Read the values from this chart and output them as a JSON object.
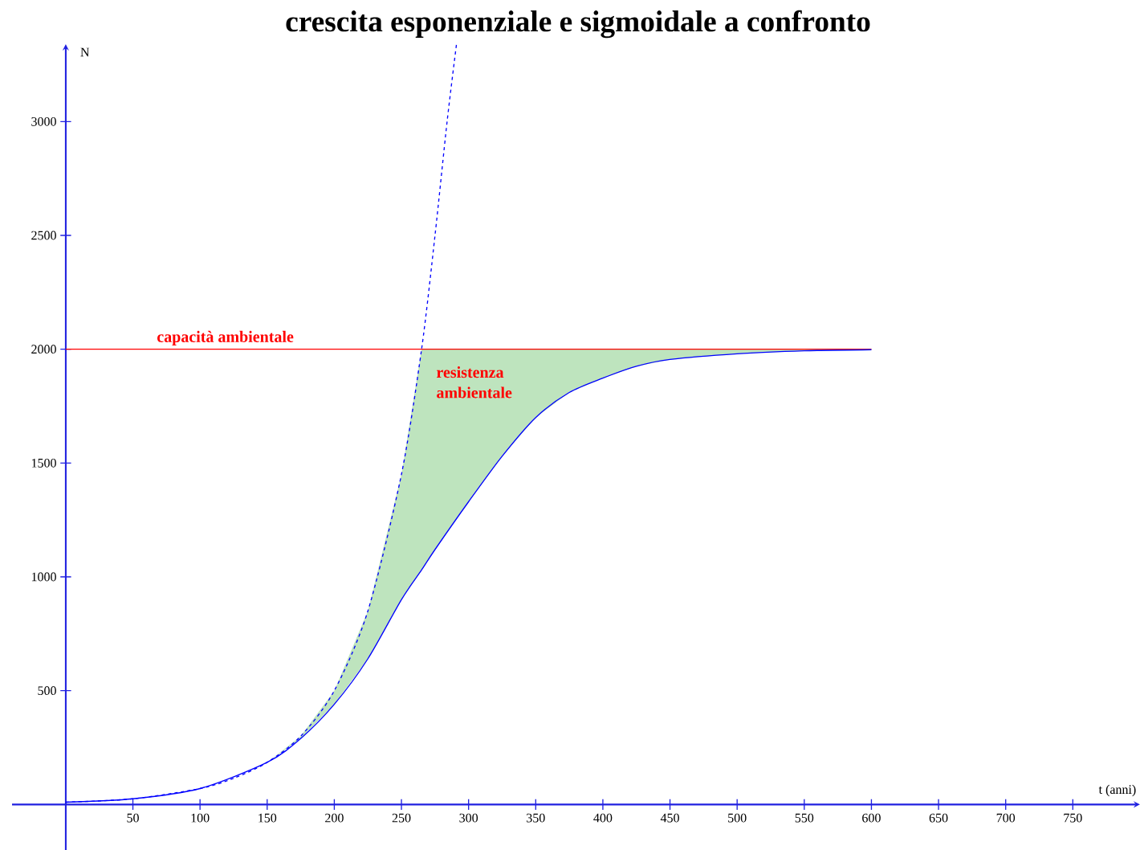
{
  "chart_data": {
    "type": "line",
    "title": "crescita esponenziale e sigmoidale a confronto",
    "xlabel": "t (anni)",
    "ylabel": "N",
    "xlim": [
      -40,
      800
    ],
    "ylim": [
      -200,
      3340
    ],
    "xticks": [
      50,
      100,
      150,
      200,
      250,
      300,
      350,
      400,
      450,
      500,
      550,
      600,
      650,
      700,
      750
    ],
    "yticks": [
      500,
      1000,
      1500,
      2000,
      2500,
      3000
    ],
    "series": [
      {
        "color": "#0000ff",
        "line_style": "dashed",
        "x": [
          0,
          50,
          100,
          125,
          150,
          175,
          200,
          225,
          250,
          265,
          275,
          284,
          291
        ],
        "values": [
          10,
          25,
          70,
          115,
          185,
          300,
          500,
          850,
          1450,
          2000,
          2500,
          3000,
          3340
        ]
      },
      {
        "color": "#0000ff",
        "line_style": "solid",
        "x": [
          0,
          50,
          100,
          150,
          175,
          200,
          225,
          250,
          265,
          275,
          300,
          325,
          350,
          375,
          400,
          425,
          450,
          500,
          550,
          600
        ],
        "values": [
          10,
          25,
          70,
          185,
          290,
          440,
          640,
          900,
          1030,
          1120,
          1330,
          1530,
          1700,
          1810,
          1873,
          1925,
          1955,
          1980,
          1993,
          1998
        ],
        "lower": [
          10,
          25,
          70,
          185,
          290,
          440,
          640,
          900,
          1030,
          1120,
          1330,
          1530,
          1700,
          1810,
          1873,
          1925,
          1955,
          1980,
          1993,
          1998
        ],
        "upper": [
          10,
          25,
          70,
          185,
          300,
          500,
          850,
          1450,
          2000,
          2000,
          2000,
          2000,
          2000,
          2000,
          2000,
          2000,
          2000,
          2000,
          2000,
          2000
        ]
      }
    ],
    "ref_lines": [
      {
        "axis": "y",
        "value": 2000,
        "label": "capacità ambientale",
        "color": "#ff0000"
      }
    ],
    "annotations": [
      "resistenza ambientale"
    ]
  }
}
